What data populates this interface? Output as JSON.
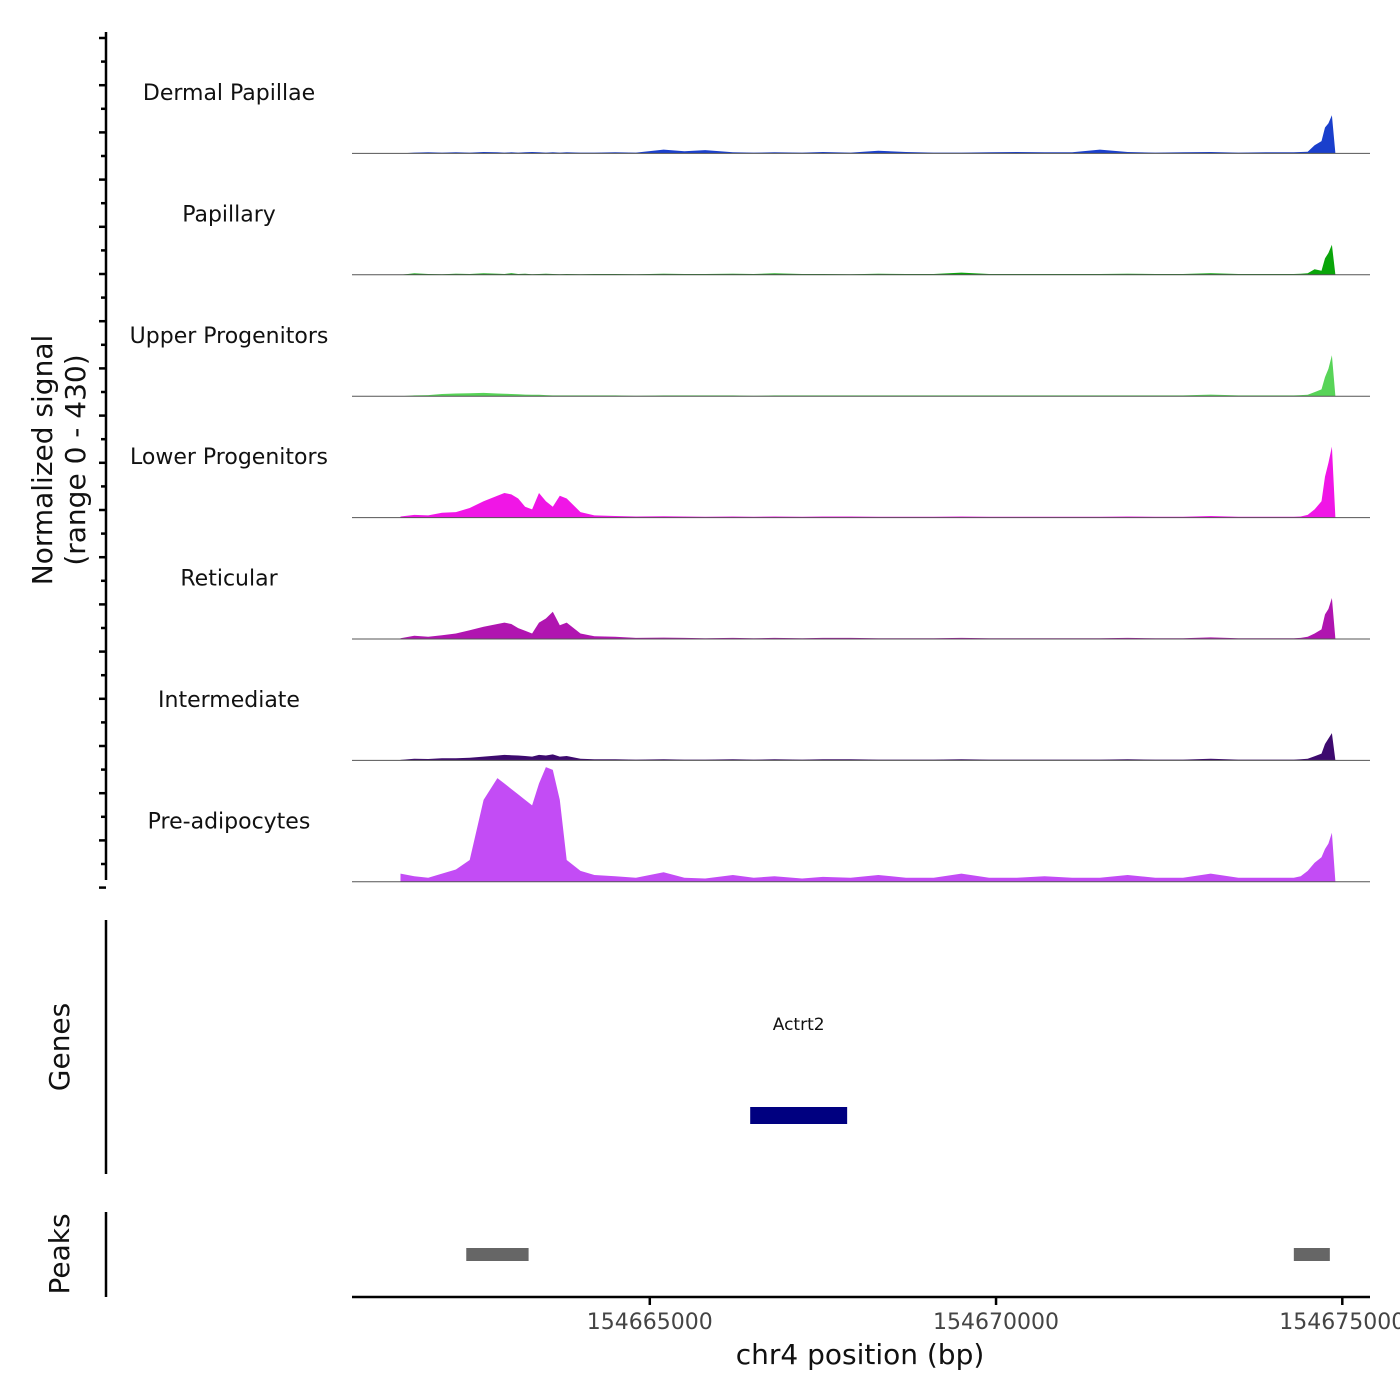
{
  "chart_data": {
    "type": "area",
    "ylabel_line1": "Normalized signal",
    "ylabel_line2": "(range 0 - 430)",
    "xlabel": "chr4 position (bp)",
    "x_range": [
      154660700,
      154675400
    ],
    "x_ticks": [
      154665000,
      154670000,
      154675000
    ],
    "x_tick_labels": [
      "154665000",
      "154670000",
      "154675000"
    ],
    "y_range": [
      0,
      430
    ],
    "track_x": [
      154661400,
      154661600,
      154661800,
      154662000,
      154662200,
      154662400,
      154662600,
      154662800,
      154662900,
      154663000,
      154663100,
      154663200,
      154663300,
      154663400,
      154663500,
      154663600,
      154663700,
      154663800,
      154664000,
      154664200,
      154664500,
      154664800,
      154665200,
      154665500,
      154665800,
      154666200,
      154666500,
      154666800,
      154667200,
      154667500,
      154667900,
      154668300,
      154668700,
      154669100,
      154669500,
      154669900,
      154670300,
      154670700,
      154671100,
      154671500,
      154671900,
      154672300,
      154672700,
      154673100,
      154673500,
      154673900,
      154674200,
      154674300,
      154674400,
      154674500,
      154674600,
      154674700,
      154674750,
      154674800,
      154674850,
      154674900
    ],
    "tracks": [
      {
        "name": "Dermal Papillae",
        "color": "#1a3fcc",
        "values": [
          0,
          3,
          4,
          3,
          4,
          3,
          5,
          4,
          3,
          4,
          3,
          4,
          5,
          4,
          3,
          4,
          3,
          4,
          3,
          3,
          4,
          3,
          14,
          8,
          12,
          4,
          3,
          4,
          3,
          5,
          3,
          10,
          5,
          3,
          3,
          4,
          5,
          4,
          4,
          14,
          5,
          3,
          4,
          5,
          3,
          4,
          4,
          4,
          5,
          6,
          30,
          45,
          95,
          110,
          140,
          0
        ]
      },
      {
        "name": "Papillary",
        "color": "#0aa50a",
        "values": [
          0,
          5,
          3,
          2,
          4,
          3,
          5,
          4,
          3,
          6,
          3,
          4,
          2,
          3,
          4,
          3,
          2,
          3,
          2,
          3,
          3,
          2,
          4,
          3,
          3,
          4,
          3,
          5,
          3,
          3,
          2,
          4,
          3,
          3,
          8,
          3,
          3,
          3,
          3,
          3,
          4,
          3,
          3,
          6,
          3,
          3,
          3,
          3,
          4,
          6,
          20,
          15,
          60,
          80,
          110,
          0
        ]
      },
      {
        "name": "Upper Progenitors",
        "color": "#58d458",
        "values": [
          0,
          3,
          4,
          8,
          10,
          11,
          12,
          10,
          9,
          8,
          7,
          6,
          5,
          5,
          4,
          3,
          3,
          3,
          3,
          3,
          3,
          2,
          3,
          3,
          3,
          3,
          2,
          3,
          3,
          3,
          3,
          3,
          3,
          3,
          3,
          3,
          3,
          3,
          3,
          3,
          3,
          3,
          3,
          6,
          3,
          3,
          3,
          3,
          4,
          5,
          15,
          25,
          70,
          100,
          150,
          0
        ]
      },
      {
        "name": "Lower Progenitors",
        "color": "#f016e6",
        "values": [
          4,
          10,
          8,
          18,
          20,
          35,
          60,
          80,
          90,
          85,
          70,
          40,
          30,
          90,
          60,
          40,
          80,
          70,
          20,
          8,
          6,
          4,
          5,
          4,
          3,
          4,
          3,
          4,
          3,
          4,
          4,
          3,
          3,
          3,
          4,
          3,
          3,
          3,
          3,
          3,
          4,
          3,
          3,
          6,
          3,
          3,
          3,
          3,
          4,
          10,
          30,
          60,
          150,
          200,
          260,
          0
        ]
      },
      {
        "name": "Reticular",
        "color": "#b015b0",
        "values": [
          3,
          12,
          8,
          14,
          20,
          32,
          45,
          55,
          60,
          55,
          40,
          30,
          20,
          60,
          75,
          100,
          50,
          60,
          20,
          10,
          8,
          4,
          5,
          4,
          3,
          4,
          3,
          4,
          3,
          4,
          4,
          3,
          3,
          3,
          4,
          3,
          3,
          3,
          3,
          3,
          4,
          3,
          3,
          6,
          3,
          3,
          3,
          3,
          4,
          8,
          20,
          35,
          90,
          110,
          150,
          0
        ]
      },
      {
        "name": "Intermediate",
        "color": "#3d0a6e",
        "values": [
          2,
          6,
          5,
          8,
          8,
          10,
          14,
          18,
          20,
          19,
          18,
          16,
          14,
          20,
          18,
          22,
          14,
          16,
          6,
          4,
          4,
          3,
          4,
          3,
          3,
          4,
          3,
          4,
          3,
          4,
          4,
          3,
          3,
          3,
          4,
          3,
          3,
          3,
          3,
          3,
          4,
          3,
          3,
          6,
          3,
          3,
          3,
          3,
          4,
          6,
          15,
          25,
          60,
          80,
          100,
          0
        ]
      },
      {
        "name": "Pre-adipocytes",
        "color": "#c34cf5",
        "values": [
          30,
          20,
          15,
          30,
          45,
          80,
          300,
          380,
          360,
          340,
          320,
          300,
          280,
          360,
          420,
          410,
          300,
          80,
          40,
          25,
          20,
          15,
          35,
          15,
          12,
          25,
          15,
          20,
          12,
          18,
          15,
          25,
          15,
          15,
          30,
          15,
          15,
          20,
          15,
          15,
          25,
          15,
          15,
          30,
          15,
          15,
          15,
          15,
          20,
          40,
          70,
          90,
          120,
          140,
          180,
          0
        ]
      }
    ],
    "genes_label": "Genes",
    "gene": {
      "name": "Actrt2",
      "start": 154666450,
      "end": 154667850,
      "color": "#000080"
    },
    "peaks_label": "Peaks",
    "peaks": [
      {
        "start": 154662350,
        "end": 154663250
      },
      {
        "start": 154674300,
        "end": 154674820
      }
    ],
    "peak_color": "#666666"
  }
}
